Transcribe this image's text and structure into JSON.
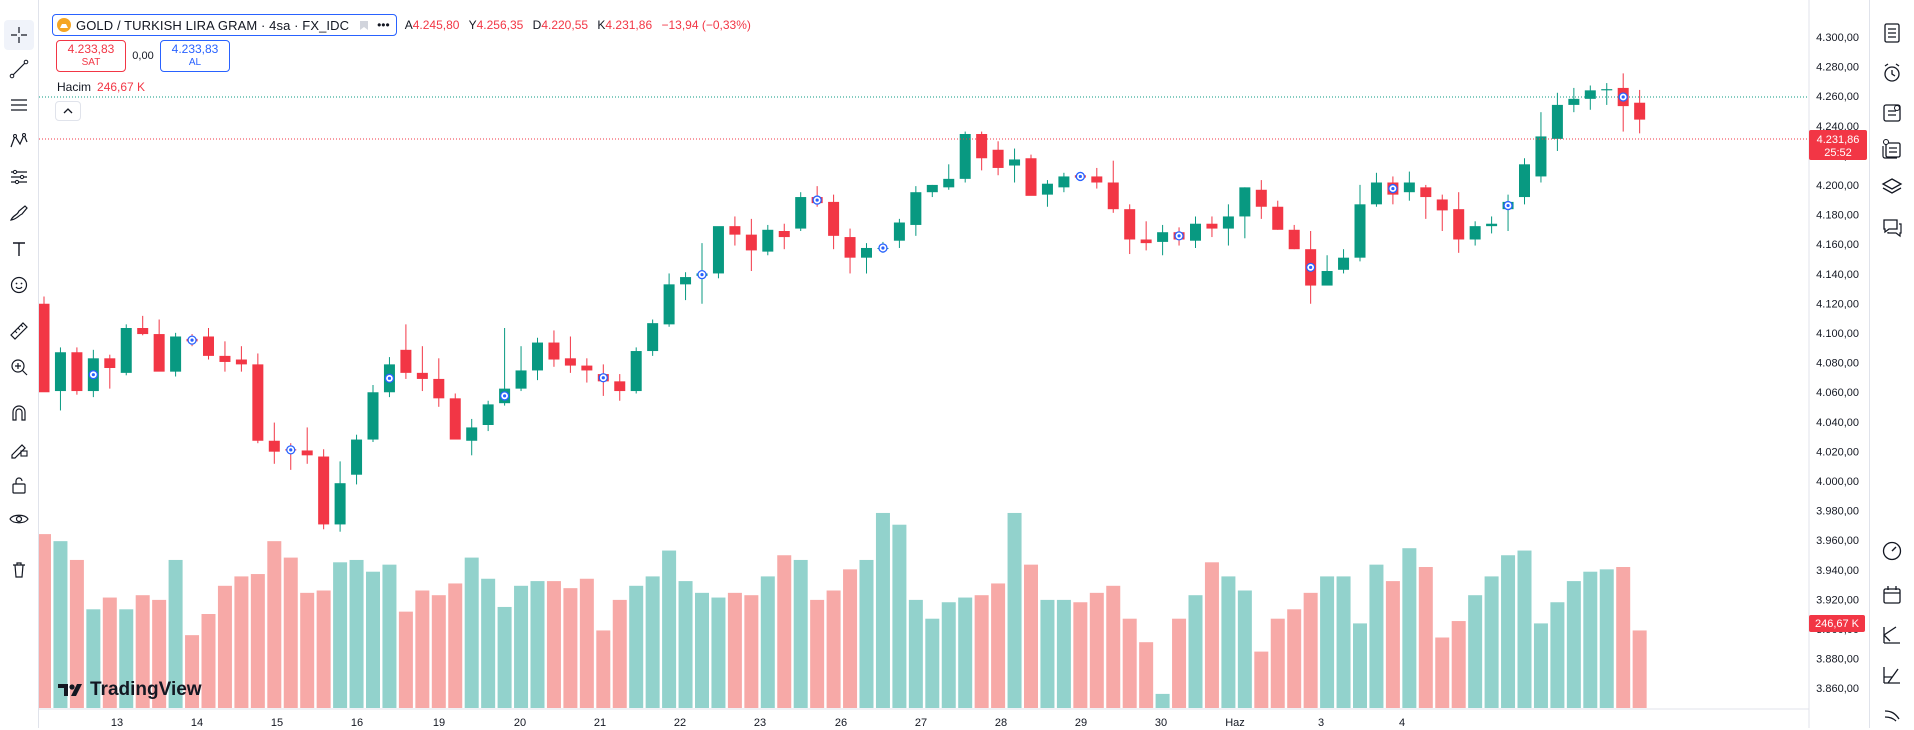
{
  "legend": {
    "symbol": "GOLD / TURKISH LIRA GRAM · 4sa · FX_IDC",
    "open_label": "A",
    "open": "4.245,80",
    "high_label": "Y",
    "high": "4.256,35",
    "low_label": "D",
    "low": "4.220,55",
    "close_label": "K",
    "close": "4.231,86",
    "change": "−13,94 (−0,33%)"
  },
  "trade": {
    "sell_price": "4.233,83",
    "sell_label": "SAT",
    "spread": "0,00",
    "buy_price": "4.233,83",
    "buy_label": "AL"
  },
  "volume": {
    "label": "Hacim",
    "value": "246,67 K"
  },
  "branding": {
    "name": "TradingView"
  },
  "price_axis": {
    "ticks": [
      "4.300,00",
      "4.280,00",
      "4.260,00",
      "4.240,00",
      "4.220,00",
      "4.200,00",
      "4.180,00",
      "4.160,00",
      "4.140,00",
      "4.120,00",
      "4.100,00",
      "4.080,00",
      "4.060,00",
      "4.040,00",
      "4.020,00",
      "4.000,00",
      "3.980,00",
      "3.960,00",
      "3.940,00",
      "3.920,00",
      "3.900,00",
      "3.880,00",
      "3.860,00"
    ],
    "current_price": "4.231,86",
    "countdown": "25:52",
    "volume_badge": "246,67 K"
  },
  "time_axis": {
    "ticks": [
      "13",
      "14",
      "15",
      "16",
      "19",
      "20",
      "21",
      "22",
      "23",
      "26",
      "27",
      "28",
      "29",
      "30",
      "Haz",
      "3",
      "4"
    ]
  },
  "colors": {
    "up": "#089981",
    "down": "#f23645",
    "up_vol": "#92d2cc",
    "down_vol": "#f7a9a7",
    "accent": "#2962ff"
  },
  "chart_data": {
    "type": "candlestick",
    "ylim": [
      3850,
      4310
    ],
    "candles": [
      {
        "o": 4080,
        "h": 4086,
        "l": 4008,
        "c": 4007
      },
      {
        "o": 4008,
        "h": 4044,
        "l": 3992,
        "c": 4040
      },
      {
        "o": 4040,
        "h": 4044,
        "l": 4005,
        "c": 4008
      },
      {
        "o": 4008,
        "h": 4042,
        "l": 4003,
        "c": 4035
      },
      {
        "o": 4035,
        "h": 4038,
        "l": 4010,
        "c": 4027
      },
      {
        "o": 4023,
        "h": 4063,
        "l": 4021,
        "c": 4060
      },
      {
        "o": 4060,
        "h": 4070,
        "l": 4054,
        "c": 4055
      },
      {
        "o": 4055,
        "h": 4067,
        "l": 4028,
        "c": 4024
      },
      {
        "o": 4024,
        "h": 4056,
        "l": 4020,
        "c": 4053
      },
      {
        "o": 4051,
        "h": 4055,
        "l": 4045,
        "c": 4049
      },
      {
        "o": 4053,
        "h": 4060,
        "l": 4034,
        "c": 4037
      },
      {
        "o": 4037,
        "h": 4049,
        "l": 4024,
        "c": 4032
      },
      {
        "o": 4034,
        "h": 4045,
        "l": 4024,
        "c": 4030
      },
      {
        "o": 4030,
        "h": 4039,
        "l": 3965,
        "c": 3967
      },
      {
        "o": 3967,
        "h": 3982,
        "l": 3948,
        "c": 3958
      },
      {
        "o": 3960,
        "h": 3965,
        "l": 3943,
        "c": 3959
      },
      {
        "o": 3959,
        "h": 3978,
        "l": 3948,
        "c": 3955
      },
      {
        "o": 3954,
        "h": 3960,
        "l": 3894,
        "c": 3898
      },
      {
        "o": 3898,
        "h": 3950,
        "l": 3892,
        "c": 3932
      },
      {
        "o": 3939,
        "h": 3972,
        "l": 3931,
        "c": 3968
      },
      {
        "o": 3968,
        "h": 4013,
        "l": 3966,
        "c": 4007
      },
      {
        "o": 4007,
        "h": 4036,
        "l": 4003,
        "c": 4030
      },
      {
        "o": 4042,
        "h": 4063,
        "l": 4018,
        "c": 4023
      },
      {
        "o": 4023,
        "h": 4045,
        "l": 4008,
        "c": 4018
      },
      {
        "o": 4018,
        "h": 4035,
        "l": 3995,
        "c": 4002
      },
      {
        "o": 4002,
        "h": 4006,
        "l": 3970,
        "c": 3968
      },
      {
        "o": 3967,
        "h": 3985,
        "l": 3955,
        "c": 3978
      },
      {
        "o": 3980,
        "h": 4000,
        "l": 3975,
        "c": 3997
      },
      {
        "o": 3998,
        "h": 4060,
        "l": 3996,
        "c": 4010
      },
      {
        "o": 4010,
        "h": 4045,
        "l": 4008,
        "c": 4025
      },
      {
        "o": 4025,
        "h": 4052,
        "l": 4017,
        "c": 4048
      },
      {
        "o": 4048,
        "h": 4058,
        "l": 4028,
        "c": 4034
      },
      {
        "o": 4035,
        "h": 4053,
        "l": 4023,
        "c": 4029
      },
      {
        "o": 4029,
        "h": 4035,
        "l": 4015,
        "c": 4025
      },
      {
        "o": 4022,
        "h": 4030,
        "l": 4004,
        "c": 4016
      },
      {
        "o": 4016,
        "h": 4022,
        "l": 4000,
        "c": 4008
      },
      {
        "o": 4008,
        "h": 4044,
        "l": 4006,
        "c": 4041
      },
      {
        "o": 4041,
        "h": 4067,
        "l": 4037,
        "c": 4064
      },
      {
        "o": 4063,
        "h": 4105,
        "l": 4061,
        "c": 4096
      },
      {
        "o": 4096,
        "h": 4106,
        "l": 4083,
        "c": 4102
      },
      {
        "o": 4103,
        "h": 4130,
        "l": 4080,
        "c": 4105
      },
      {
        "o": 4105,
        "h": 4140,
        "l": 4101,
        "c": 4144
      },
      {
        "o": 4144,
        "h": 4152,
        "l": 4128,
        "c": 4137
      },
      {
        "o": 4137,
        "h": 4150,
        "l": 4107,
        "c": 4124
      },
      {
        "o": 4123,
        "h": 4145,
        "l": 4120,
        "c": 4141
      },
      {
        "o": 4140,
        "h": 4146,
        "l": 4125,
        "c": 4135
      },
      {
        "o": 4142,
        "h": 4172,
        "l": 4140,
        "c": 4168
      },
      {
        "o": 4168,
        "h": 4177,
        "l": 4160,
        "c": 4163
      },
      {
        "o": 4164,
        "h": 4170,
        "l": 4125,
        "c": 4136
      },
      {
        "o": 4135,
        "h": 4142,
        "l": 4105,
        "c": 4118
      },
      {
        "o": 4118,
        "h": 4130,
        "l": 4105,
        "c": 4126
      },
      {
        "o": 4126,
        "h": 4131,
        "l": 4122,
        "c": 4126
      },
      {
        "o": 4132,
        "h": 4150,
        "l": 4126,
        "c": 4147
      },
      {
        "o": 4145,
        "h": 4177,
        "l": 4136,
        "c": 4172
      },
      {
        "o": 4172,
        "h": 4178,
        "l": 4168,
        "c": 4178
      },
      {
        "o": 4176,
        "h": 4195,
        "l": 4174,
        "c": 4183
      },
      {
        "o": 4183,
        "h": 4222,
        "l": 4180,
        "c": 4220
      },
      {
        "o": 4220,
        "h": 4222,
        "l": 4190,
        "c": 4200
      },
      {
        "o": 4207,
        "h": 4214,
        "l": 4186,
        "c": 4192
      },
      {
        "o": 4194,
        "h": 4208,
        "l": 4180,
        "c": 4199
      },
      {
        "o": 4200,
        "h": 4203,
        "l": 4171,
        "c": 4169
      },
      {
        "o": 4170,
        "h": 4182,
        "l": 4160,
        "c": 4179
      },
      {
        "o": 4176,
        "h": 4188,
        "l": 4172,
        "c": 4185
      },
      {
        "o": 4186,
        "h": 4186,
        "l": 4183,
        "c": 4184
      },
      {
        "o": 4185,
        "h": 4192,
        "l": 4175,
        "c": 4180
      },
      {
        "o": 4180,
        "h": 4198,
        "l": 4155,
        "c": 4158
      },
      {
        "o": 4158,
        "h": 4162,
        "l": 4121,
        "c": 4133
      },
      {
        "o": 4133,
        "h": 4148,
        "l": 4124,
        "c": 4130
      },
      {
        "o": 4131,
        "h": 4145,
        "l": 4120,
        "c": 4139
      },
      {
        "o": 4139,
        "h": 4143,
        "l": 4128,
        "c": 4133
      },
      {
        "o": 4132,
        "h": 4152,
        "l": 4126,
        "c": 4146
      },
      {
        "o": 4146,
        "h": 4152,
        "l": 4135,
        "c": 4142
      },
      {
        "o": 4142,
        "h": 4162,
        "l": 4128,
        "c": 4152
      },
      {
        "o": 4152,
        "h": 4176,
        "l": 4134,
        "c": 4176
      },
      {
        "o": 4174,
        "h": 4182,
        "l": 4150,
        "c": 4160
      },
      {
        "o": 4160,
        "h": 4165,
        "l": 4141,
        "c": 4141
      },
      {
        "o": 4141,
        "h": 4145,
        "l": 4125,
        "c": 4125
      },
      {
        "o": 4125,
        "h": 4140,
        "l": 4080,
        "c": 4095
      },
      {
        "o": 4095,
        "h": 4120,
        "l": 4098,
        "c": 4107
      },
      {
        "o": 4108,
        "h": 4125,
        "l": 4105,
        "c": 4118
      },
      {
        "o": 4118,
        "h": 4178,
        "l": 4115,
        "c": 4162
      },
      {
        "o": 4162,
        "h": 4188,
        "l": 4160,
        "c": 4180
      },
      {
        "o": 4180,
        "h": 4185,
        "l": 4162,
        "c": 4170
      },
      {
        "o": 4172,
        "h": 4189,
        "l": 4165,
        "c": 4180
      },
      {
        "o": 4176,
        "h": 4178,
        "l": 4150,
        "c": 4168
      },
      {
        "o": 4166,
        "h": 4170,
        "l": 4140,
        "c": 4157
      },
      {
        "o": 4158,
        "h": 4172,
        "l": 4122,
        "c": 4133
      },
      {
        "o": 4133,
        "h": 4148,
        "l": 4128,
        "c": 4144
      },
      {
        "o": 4144,
        "h": 4152,
        "l": 4138,
        "c": 4146
      },
      {
        "o": 4158,
        "h": 4170,
        "l": 4140,
        "c": 4164
      },
      {
        "o": 4168,
        "h": 4200,
        "l": 4162,
        "c": 4195
      },
      {
        "o": 4185,
        "h": 4238,
        "l": 4180,
        "c": 4218
      },
      {
        "o": 4216,
        "h": 4254,
        "l": 4206,
        "c": 4244
      },
      {
        "o": 4244,
        "h": 4258,
        "l": 4238,
        "c": 4249
      },
      {
        "o": 4249,
        "h": 4260,
        "l": 4240,
        "c": 4256
      },
      {
        "o": 4256,
        "h": 4262,
        "l": 4244,
        "c": 4257
      },
      {
        "o": 4258,
        "h": 4270,
        "l": 4222,
        "c": 4243
      },
      {
        "o": 4245.8,
        "h": 4256.35,
        "l": 4220.55,
        "c": 4231.86
      }
    ],
    "volume_ylim": [
      0,
      120
    ]
  }
}
